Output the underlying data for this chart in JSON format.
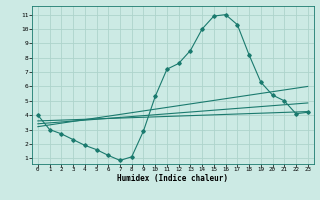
{
  "title": "",
  "xlabel": "Humidex (Indice chaleur)",
  "bg_color": "#cceae4",
  "grid_color": "#aed4cc",
  "line_color": "#1a7a6e",
  "xlim": [
    -0.5,
    23.5
  ],
  "ylim": [
    0.6,
    11.6
  ],
  "xticks": [
    0,
    1,
    2,
    3,
    4,
    5,
    6,
    7,
    8,
    9,
    10,
    11,
    12,
    13,
    14,
    15,
    16,
    17,
    18,
    19,
    20,
    21,
    22,
    23
  ],
  "yticks": [
    1,
    2,
    3,
    4,
    5,
    6,
    7,
    8,
    9,
    10,
    11
  ],
  "main_x": [
    0,
    1,
    2,
    3,
    4,
    5,
    6,
    7,
    8,
    9,
    10,
    11,
    12,
    13,
    14,
    15,
    16,
    17,
    18,
    19,
    20,
    21,
    22,
    23
  ],
  "main_y": [
    4.0,
    3.0,
    2.7,
    2.3,
    1.9,
    1.6,
    1.2,
    0.85,
    1.1,
    2.9,
    5.3,
    7.2,
    7.6,
    8.5,
    10.0,
    10.9,
    11.0,
    10.3,
    8.2,
    6.3,
    5.4,
    5.0,
    4.1,
    4.2
  ],
  "line1_x": [
    0,
    23
  ],
  "line1_y": [
    3.6,
    4.25
  ],
  "line2_x": [
    0,
    23
  ],
  "line2_y": [
    3.4,
    4.85
  ],
  "line3_x": [
    0,
    23
  ],
  "line3_y": [
    3.2,
    6.0
  ],
  "figsize": [
    3.2,
    2.0
  ],
  "dpi": 100
}
